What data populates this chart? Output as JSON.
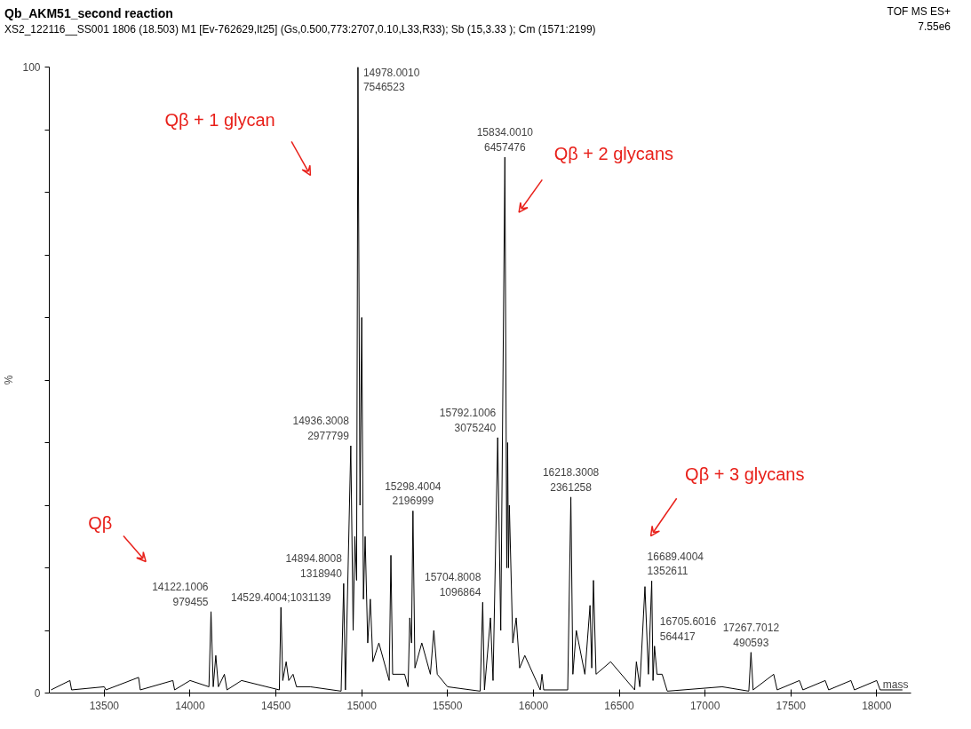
{
  "chart_data": {
    "type": "line",
    "title": "Qb_AKM51_second reaction",
    "subtitle": "XS2_122116__SS001 1806 (18.503) M1 [Ev-762629,It25] (Gs,0.500,773:2707,0.10,L33,R33); Sb (15,3.33 ); Cm (1571:2199)",
    "xlabel": "mass",
    "ylabel": "%",
    "xlim": [
      13180,
      18200
    ],
    "ylim": [
      0,
      100
    ],
    "xticks": [
      13500,
      14000,
      14500,
      15000,
      15500,
      16000,
      16500,
      17000,
      17500,
      18000
    ],
    "yticks": [
      0,
      {
        "value": 10,
        "label": null
      },
      {
        "value": 20,
        "label": null
      },
      {
        "value": 30,
        "label": null
      },
      {
        "value": 40,
        "label": null
      },
      {
        "value": 50,
        "label": null
      },
      {
        "value": 60,
        "label": null
      },
      {
        "value": 70,
        "label": null
      },
      {
        "value": 80,
        "label": null
      },
      {
        "value": 90,
        "label": null
      },
      100
    ],
    "grid": false,
    "series": [
      {
        "color": "#000000",
        "x": [
          13190,
          13300,
          13310,
          13500,
          13510,
          13700,
          13710,
          13900,
          13910,
          14000,
          14110,
          14122.1,
          14135,
          14150,
          14165,
          14200,
          14215,
          14300,
          14520,
          14529.4,
          14540,
          14560,
          14575,
          14600,
          14620,
          14700,
          14880,
          14894.8,
          14905,
          14936.3,
          14950,
          14960,
          14970,
          14978,
          14990,
          15000,
          15010,
          15020,
          15035,
          15050,
          15065,
          15100,
          15160,
          15170,
          15180,
          15250,
          15270,
          15280,
          15290,
          15298.4,
          15310,
          15350,
          15400,
          15420,
          15440,
          15500,
          15690,
          15704.8,
          15715,
          15750,
          15765,
          15792.1,
          15810,
          15834,
          15845,
          15850,
          15855,
          15860,
          15880,
          15900,
          15920,
          15950,
          16040,
          16050,
          16060,
          16200,
          16218.3,
          16230,
          16250,
          16300,
          16330,
          16340,
          16350,
          16365,
          16450,
          16590,
          16600,
          16620,
          16650,
          16670,
          16689.4,
          16697,
          16705.6,
          16720,
          16750,
          16780,
          17100,
          17255,
          17267.7,
          17280,
          17400,
          17420,
          17550,
          17570,
          17700,
          17720,
          17850,
          17870,
          18000,
          18020,
          18150
        ],
        "values": [
          0.5,
          2,
          0.5,
          1,
          0.5,
          2.5,
          0.5,
          2,
          0.5,
          2,
          1,
          13.0,
          1,
          6,
          1,
          3,
          0.5,
          2,
          0.5,
          13.7,
          2,
          5,
          2,
          3,
          1,
          1,
          0.3,
          17.5,
          0.5,
          39.5,
          10,
          25,
          18,
          100,
          30,
          60,
          15,
          25,
          8,
          15,
          5,
          8,
          2,
          22,
          3,
          3,
          1,
          12,
          8,
          29.1,
          4,
          8,
          3,
          10,
          3,
          1,
          0.3,
          14.5,
          0.5,
          12,
          2,
          40.8,
          10,
          85.6,
          20,
          40,
          20,
          30,
          8,
          12,
          4,
          6,
          0.5,
          3,
          0.5,
          0.5,
          31.3,
          3,
          10,
          3,
          14,
          4,
          18,
          3,
          5,
          0.5,
          5,
          1,
          17,
          3,
          17.9,
          2,
          7.5,
          3,
          3,
          0.3,
          1,
          0.3,
          6.5,
          0.5,
          3,
          0.5,
          2,
          0.5,
          2,
          0.5,
          2,
          0.5,
          2,
          0.5,
          0.5
        ]
      }
    ],
    "annotations": [
      {
        "text": "14978.0010\n7546523",
        "x": 14978,
        "y": 100
      },
      {
        "text": "15834.0010\n6457476",
        "x": 15834,
        "y": 85.6
      },
      {
        "text": "14936.3008\n2977799",
        "x": 14936.3,
        "y": 39.5
      },
      {
        "text": "15792.1006\n3075240",
        "x": 15792.1,
        "y": 40.8
      },
      {
        "text": "16218.3008\n2361258",
        "x": 16218.3,
        "y": 31.3
      },
      {
        "text": "15298.4004\n2196999",
        "x": 15298.4,
        "y": 29.1
      },
      {
        "text": "14894.8008\n1318940",
        "x": 14894.8,
        "y": 17.5
      },
      {
        "text": "16689.4004\n1352611",
        "x": 16689.4,
        "y": 17.9
      },
      {
        "text": "14122.1006\n979455",
        "x": 14122.1,
        "y": 13.0
      },
      {
        "text": "14529.4004;1031139",
        "x": 14529.4,
        "y": 13.7
      },
      {
        "text": "15704.8008\n1096864",
        "x": 15704.8,
        "y": 14.5
      },
      {
        "text": "16705.6016\n564417",
        "x": 16705.6,
        "y": 7.5
      },
      {
        "text": "17267.7012\n490593",
        "x": 17267.7,
        "y": 6.5
      },
      "Qβ",
      "Qβ + 1 glycan",
      "Qβ + 2 glycans",
      "Qβ + 3 glycans",
      "TOF MS ES+",
      "7.55e6"
    ]
  }
}
